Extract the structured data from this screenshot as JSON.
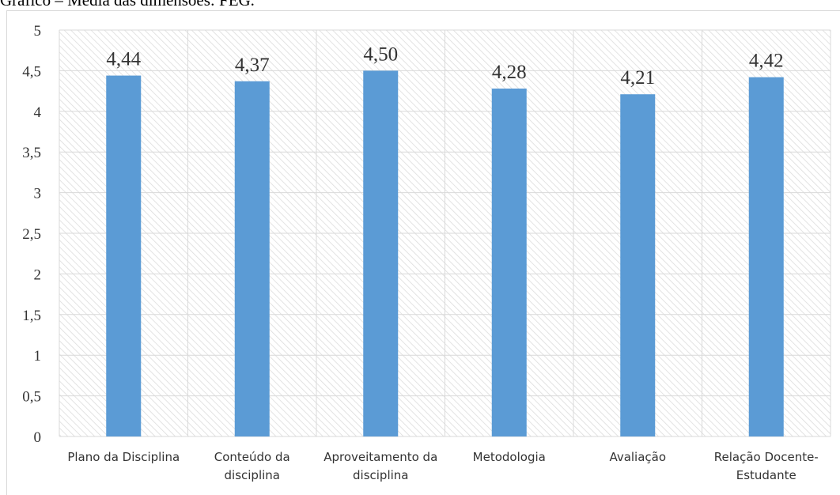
{
  "caption": "Gráfico – Média das dimensões: FEG.",
  "chart_data": {
    "type": "bar",
    "title": "",
    "xlabel": "",
    "ylabel": "",
    "ylim": [
      0,
      5
    ],
    "yticks": [
      "0",
      "0,5",
      "1",
      "1,5",
      "2",
      "2,5",
      "3",
      "3,5",
      "4",
      "4,5",
      "5"
    ],
    "ytick_values": [
      0,
      0.5,
      1,
      1.5,
      2,
      2.5,
      3,
      3.5,
      4,
      4.5,
      5
    ],
    "categories": [
      [
        "Plano da Disciplina"
      ],
      [
        "Conteúdo da",
        "disciplina"
      ],
      [
        "Aproveitamento da",
        "disciplina"
      ],
      [
        "Metodologia"
      ],
      [
        "Avaliação"
      ],
      [
        "Relação Docente-",
        "Estudante"
      ]
    ],
    "values": [
      4.44,
      4.37,
      4.5,
      4.28,
      4.21,
      4.42
    ],
    "data_labels": [
      "4,44",
      "4,37",
      "4,50",
      "4,28",
      "4,21",
      "4,42"
    ],
    "bar_color": "#5b9bd5",
    "grid": true,
    "legend": "none"
  }
}
